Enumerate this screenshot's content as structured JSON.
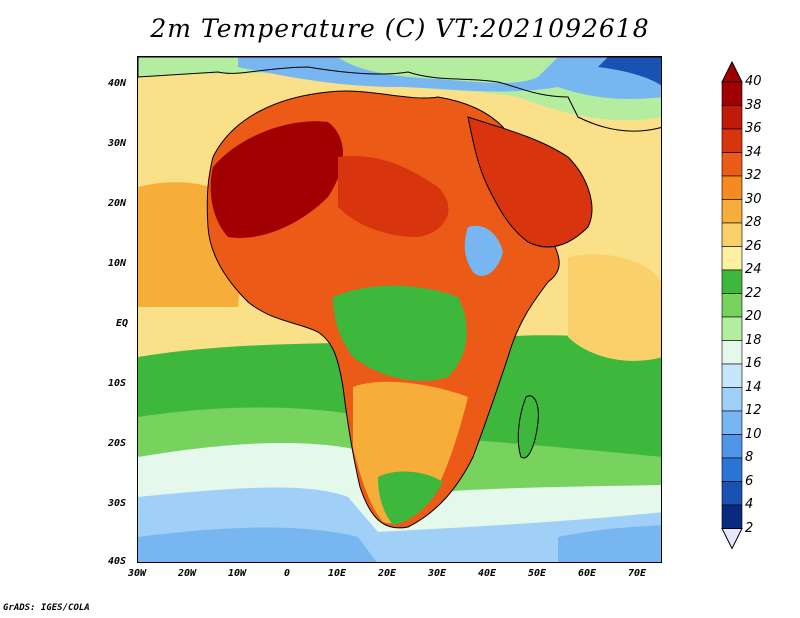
{
  "title": "2m Temperature (C) VT:2021092618",
  "credit": "GrADS: IGES/COLA",
  "map": {
    "lat_labels": [
      "40N",
      "30N",
      "20N",
      "10N",
      "EQ",
      "10S",
      "20S",
      "30S",
      "40S"
    ],
    "lon_labels": [
      "30W",
      "20W",
      "10W",
      "0",
      "10E",
      "20E",
      "30E",
      "40E",
      "50E",
      "60E",
      "70E"
    ],
    "lat_range": [
      -40,
      45
    ],
    "lon_range": [
      -30,
      75
    ]
  },
  "colorbar": {
    "levels": [
      "40",
      "38",
      "36",
      "34",
      "32",
      "30",
      "28",
      "26",
      "24",
      "22",
      "20",
      "18",
      "16",
      "14",
      "12",
      "10",
      "8",
      "6",
      "4",
      "2"
    ],
    "colors": [
      "#a00000",
      "#c01a0a",
      "#d8340e",
      "#eb5a16",
      "#f58a22",
      "#f7ad3a",
      "#fad06a",
      "#fdf0a0",
      "#3db83d",
      "#78d25e",
      "#b4eca0",
      "#e4f8ec",
      "#c6e6fc",
      "#a0d0f8",
      "#78b6f2",
      "#4f96e8",
      "#2c74d6",
      "#1a52b4",
      "#0a2a80"
    ]
  }
}
